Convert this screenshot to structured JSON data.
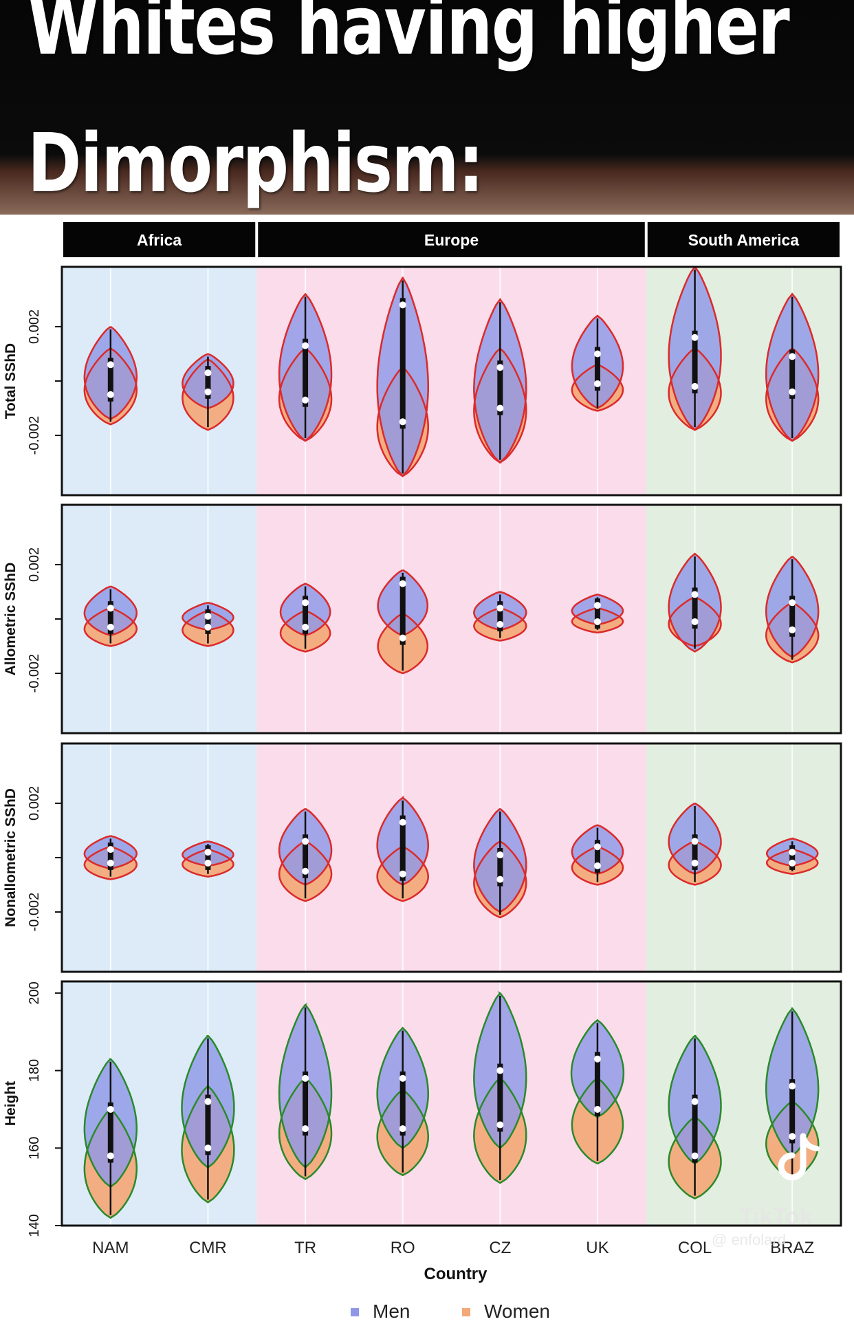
{
  "title": {
    "line1": "Whites having higher",
    "line2": "Dimorphism:"
  },
  "chart_data": {
    "type": "violin",
    "regions": [
      {
        "name": "Africa",
        "countries": [
          "NAM",
          "CMR"
        ],
        "color": "#dcebf7"
      },
      {
        "name": "Europe",
        "countries": [
          "TR",
          "RO",
          "CZ",
          "UK"
        ],
        "color": "#fadcea"
      },
      {
        "name": "South America",
        "countries": [
          "COL",
          "BRAZ"
        ],
        "color": "#e2eedf"
      }
    ],
    "xlabel": "Country",
    "categories": [
      "NAM",
      "CMR",
      "TR",
      "RO",
      "CZ",
      "UK",
      "COL",
      "BRAZ"
    ],
    "legend": [
      {
        "label": "Men",
        "color": "#8f98e8"
      },
      {
        "label": "Women",
        "color": "#f3a877"
      }
    ],
    "panels": [
      {
        "ylabel": "Total SShD",
        "ylim": [
          -0.0042,
          0.0042
        ],
        "ticks": [
          -0.002,
          0,
          0.002
        ],
        "tick_labels": [
          "-0.002",
          "",
          "0.002"
        ],
        "outline_color": "#dd2a2a",
        "men": [
          {
            "median": 0.0006,
            "min": -0.0014,
            "max": 0.002,
            "halfwidth": 0.82
          },
          {
            "median": 0.0003,
            "min": -0.001,
            "max": 0.001,
            "halfwidth": 0.8
          },
          {
            "median": 0.0013,
            "min": -0.0022,
            "max": 0.0032,
            "halfwidth": 0.82
          },
          {
            "median": 0.0028,
            "min": -0.0035,
            "max": 0.0038,
            "halfwidth": 0.8
          },
          {
            "median": 0.0005,
            "min": -0.003,
            "max": 0.003,
            "halfwidth": 0.82
          },
          {
            "median": 0.001,
            "min": -0.001,
            "max": 0.0024,
            "halfwidth": 0.8
          },
          {
            "median": 0.0016,
            "min": -0.0018,
            "max": 0.0042,
            "halfwidth": 0.82
          },
          {
            "median": 0.0009,
            "min": -0.0022,
            "max": 0.0032,
            "halfwidth": 0.82
          }
        ],
        "women": [
          {
            "median": -0.0005,
            "min": -0.0016,
            "max": 0.0012,
            "halfwidth": 0.82
          },
          {
            "median": -0.0004,
            "min": -0.0018,
            "max": 0.0008,
            "halfwidth": 0.8
          },
          {
            "median": -0.0007,
            "min": -0.0022,
            "max": 0.0012,
            "halfwidth": 0.82
          },
          {
            "median": -0.0015,
            "min": -0.0035,
            "max": 0.0005,
            "halfwidth": 0.8
          },
          {
            "median": -0.001,
            "min": -0.003,
            "max": 0.0012,
            "halfwidth": 0.82
          },
          {
            "median": -0.0001,
            "min": -0.0011,
            "max": 0.0006,
            "halfwidth": 0.8
          },
          {
            "median": -0.0002,
            "min": -0.0018,
            "max": 0.0012,
            "halfwidth": 0.82
          },
          {
            "median": -0.0004,
            "min": -0.0022,
            "max": 0.0012,
            "halfwidth": 0.82
          }
        ]
      },
      {
        "ylabel": "Allometric SShD",
        "ylim": [
          -0.0042,
          0.0042
        ],
        "ticks": [
          -0.002,
          0,
          0.002
        ],
        "tick_labels": [
          "-0.002",
          "",
          "0.002"
        ],
        "outline_color": "#dd2a2a",
        "men": [
          {
            "median": 0.0004,
            "min": -0.0006,
            "max": 0.0012,
            "halfwidth": 0.82
          },
          {
            "median": 0.0001,
            "min": -0.0004,
            "max": 0.0006,
            "halfwidth": 0.8
          },
          {
            "median": 0.0006,
            "min": -0.0006,
            "max": 0.0013,
            "halfwidth": 0.78
          },
          {
            "median": 0.0013,
            "min": -0.0006,
            "max": 0.0018,
            "halfwidth": 0.78
          },
          {
            "median": 0.0004,
            "min": -0.0004,
            "max": 0.001,
            "halfwidth": 0.82
          },
          {
            "median": 0.0005,
            "min": -0.0002,
            "max": 0.0009,
            "halfwidth": 0.8
          },
          {
            "median": 0.0009,
            "min": -0.0012,
            "max": 0.0024,
            "halfwidth": 0.82
          },
          {
            "median": 0.0006,
            "min": -0.0014,
            "max": 0.0023,
            "halfwidth": 0.82
          }
        ],
        "women": [
          {
            "median": -0.0003,
            "min": -0.001,
            "max": 0.0004,
            "halfwidth": 0.82
          },
          {
            "median": -0.0003,
            "min": -0.001,
            "max": 0.0003,
            "halfwidth": 0.8
          },
          {
            "median": -0.0003,
            "min": -0.0012,
            "max": 0.0003,
            "halfwidth": 0.78
          },
          {
            "median": -0.0007,
            "min": -0.002,
            "max": 0.0002,
            "halfwidth": 0.78
          },
          {
            "median": -0.0002,
            "min": -0.0008,
            "max": 0.0004,
            "halfwidth": 0.82
          },
          {
            "median": -0.0001,
            "min": -0.0005,
            "max": 0.0004,
            "halfwidth": 0.8
          },
          {
            "median": -0.0001,
            "min": -0.001,
            "max": 0.0008,
            "halfwidth": 0.82
          },
          {
            "median": -0.0004,
            "min": -0.0016,
            "max": 0.0006,
            "halfwidth": 0.82
          }
        ]
      },
      {
        "ylabel": "Nonallometric SShD",
        "ylim": [
          -0.0042,
          0.0042
        ],
        "ticks": [
          -0.002,
          0,
          0.002
        ],
        "tick_labels": [
          "-0.002",
          "",
          "0.002"
        ],
        "outline_color": "#dd2a2a",
        "men": [
          {
            "median": 0.0003,
            "min": -0.0004,
            "max": 0.0008,
            "halfwidth": 0.82
          },
          {
            "median": 0.0002,
            "min": -0.0003,
            "max": 0.0006,
            "halfwidth": 0.8
          },
          {
            "median": 0.0006,
            "min": -0.001,
            "max": 0.0018,
            "halfwidth": 0.82
          },
          {
            "median": 0.0013,
            "min": -0.001,
            "max": 0.0022,
            "halfwidth": 0.8
          },
          {
            "median": 0.0001,
            "min": -0.002,
            "max": 0.0018,
            "halfwidth": 0.82
          },
          {
            "median": 0.0004,
            "min": -0.0006,
            "max": 0.0012,
            "halfwidth": 0.8
          },
          {
            "median": 0.0006,
            "min": -0.0006,
            "max": 0.002,
            "halfwidth": 0.82
          },
          {
            "median": 0.0002,
            "min": -0.0003,
            "max": 0.0007,
            "halfwidth": 0.8
          }
        ],
        "women": [
          {
            "median": -0.0002,
            "min": -0.0008,
            "max": 0.0004,
            "halfwidth": 0.82
          },
          {
            "median": -0.0002,
            "min": -0.0007,
            "max": 0.0003,
            "halfwidth": 0.8
          },
          {
            "median": -0.0005,
            "min": -0.0016,
            "max": 0.0006,
            "halfwidth": 0.82
          },
          {
            "median": -0.0006,
            "min": -0.0016,
            "max": 0.0004,
            "halfwidth": 0.8
          },
          {
            "median": -0.0008,
            "min": -0.0022,
            "max": 0.0006,
            "halfwidth": 0.82
          },
          {
            "median": -0.0003,
            "min": -0.001,
            "max": 0.0004,
            "halfwidth": 0.8
          },
          {
            "median": -0.0002,
            "min": -0.001,
            "max": 0.0006,
            "halfwidth": 0.82
          },
          {
            "median": -0.0002,
            "min": -0.0006,
            "max": 0.0003,
            "halfwidth": 0.8
          }
        ]
      },
      {
        "ylabel": "Height",
        "ylim": [
          140,
          203
        ],
        "ticks": [
          140,
          160,
          180,
          200
        ],
        "tick_labels": [
          "140",
          "160",
          "180",
          "200"
        ],
        "outline_color": "#2a8a2a",
        "men": [
          {
            "median": 170,
            "min": 150,
            "max": 183,
            "halfwidth": 0.82
          },
          {
            "median": 172,
            "min": 155,
            "max": 189,
            "halfwidth": 0.82
          },
          {
            "median": 178,
            "min": 155,
            "max": 197,
            "halfwidth": 0.82
          },
          {
            "median": 178,
            "min": 160,
            "max": 191,
            "halfwidth": 0.8
          },
          {
            "median": 180,
            "min": 160,
            "max": 200,
            "halfwidth": 0.82
          },
          {
            "median": 183,
            "min": 168,
            "max": 193,
            "halfwidth": 0.82
          },
          {
            "median": 172,
            "min": 156,
            "max": 189,
            "halfwidth": 0.82
          },
          {
            "median": 176,
            "min": 158,
            "max": 196,
            "halfwidth": 0.82
          }
        ],
        "women": [
          {
            "median": 158,
            "min": 142,
            "max": 170,
            "halfwidth": 0.82
          },
          {
            "median": 160,
            "min": 146,
            "max": 176,
            "halfwidth": 0.82
          },
          {
            "median": 165,
            "min": 152,
            "max": 178,
            "halfwidth": 0.82
          },
          {
            "median": 165,
            "min": 153,
            "max": 175,
            "halfwidth": 0.8
          },
          {
            "median": 166,
            "min": 151,
            "max": 178,
            "halfwidth": 0.82
          },
          {
            "median": 170,
            "min": 156,
            "max": 178,
            "halfwidth": 0.8
          },
          {
            "median": 158,
            "min": 147,
            "max": 168,
            "halfwidth": 0.82
          },
          {
            "median": 163,
            "min": 152,
            "max": 172,
            "halfwidth": 0.82
          }
        ]
      }
    ]
  },
  "watermark": {
    "brand": "TikTok",
    "handle": "@ enfolard"
  }
}
